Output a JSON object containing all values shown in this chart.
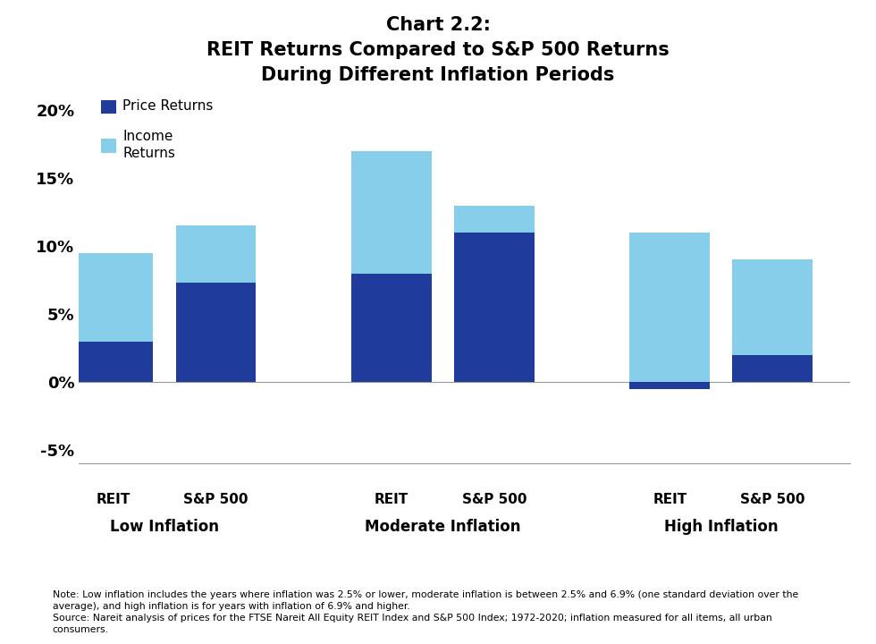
{
  "title": "Chart 2.2:\nREIT Returns Compared to S&P 500 Returns\nDuring Different Inflation Periods",
  "groups": [
    "Low Inflation",
    "Moderate Inflation",
    "High Inflation"
  ],
  "bars": [
    {
      "label": "REIT",
      "group": "Low Inflation",
      "price": 3.0,
      "income": 6.5
    },
    {
      "label": "S&P 500",
      "group": "Low Inflation",
      "price": 7.3,
      "income": 4.2
    },
    {
      "label": "REIT",
      "group": "Moderate Inflation",
      "price": 8.0,
      "income": 9.0
    },
    {
      "label": "S&P 500",
      "group": "Moderate Inflation",
      "price": 11.0,
      "income": 2.0
    },
    {
      "label": "REIT",
      "group": "High Inflation",
      "price": -0.5,
      "income": 11.0
    },
    {
      "label": "S&P 500",
      "group": "High Inflation",
      "price": 2.0,
      "income": 7.0
    }
  ],
  "color_price": "#1F3C9C",
  "color_income": "#87CEEB",
  "ylim": [
    -6,
    21
  ],
  "yticks": [
    -5,
    0,
    5,
    10,
    15,
    20
  ],
  "yticklabels": [
    "-5%",
    "0%",
    "5%",
    "10%",
    "15%",
    "20%"
  ],
  "legend_price": "Price Returns",
  "legend_income": "Income\nReturns",
  "note": "Note: Low inflation includes the years where inflation was 2.5% or lower, moderate inflation is between 2.5% and 6.9% (one standard deviation over the\naverage), and high inflation is for years with inflation of 6.9% and higher.\nSource: Nareit analysis of prices for the FTSE Nareit All Equity REIT Index and S&P 500 Index; 1972-2020; inflation measured for all items, all urban\nconsumers."
}
